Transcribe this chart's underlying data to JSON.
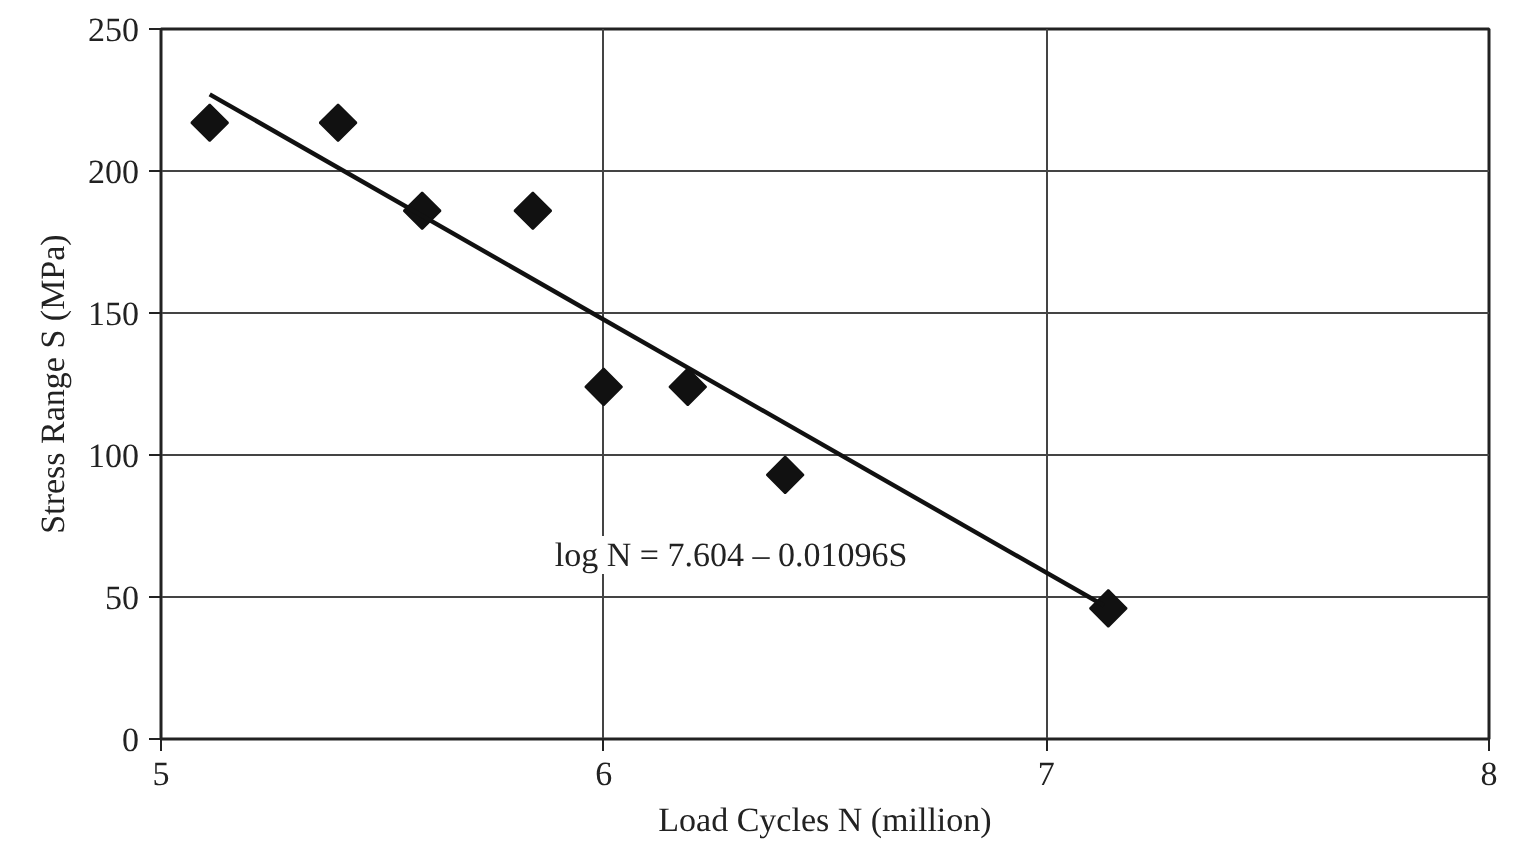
{
  "chart_data": {
    "type": "scatter",
    "xlabel": "Load Cycles N (million)",
    "ylabel": "Stress Range S (MPa)",
    "xlim": [
      5,
      8
    ],
    "xticks": [
      5,
      6,
      7,
      8
    ],
    "ylim": [
      0,
      250
    ],
    "yticks": [
      0,
      50,
      100,
      150,
      200,
      250
    ],
    "grid": true,
    "series": [
      {
        "marker": "diamond",
        "color": "#111111",
        "x": [
          5.11,
          5.4,
          5.59,
          5.84,
          6.0,
          6.19,
          6.41,
          7.14
        ],
        "values": [
          217,
          217,
          186,
          186,
          124,
          124,
          93,
          46
        ]
      },
      {
        "type": "line",
        "line_style": "solid",
        "color": "#111111",
        "x": [
          5.11,
          7.13
        ],
        "values": [
          227,
          47
        ]
      }
    ],
    "annotations": [
      "log N = 7.604 – 0.01096S"
    ]
  }
}
